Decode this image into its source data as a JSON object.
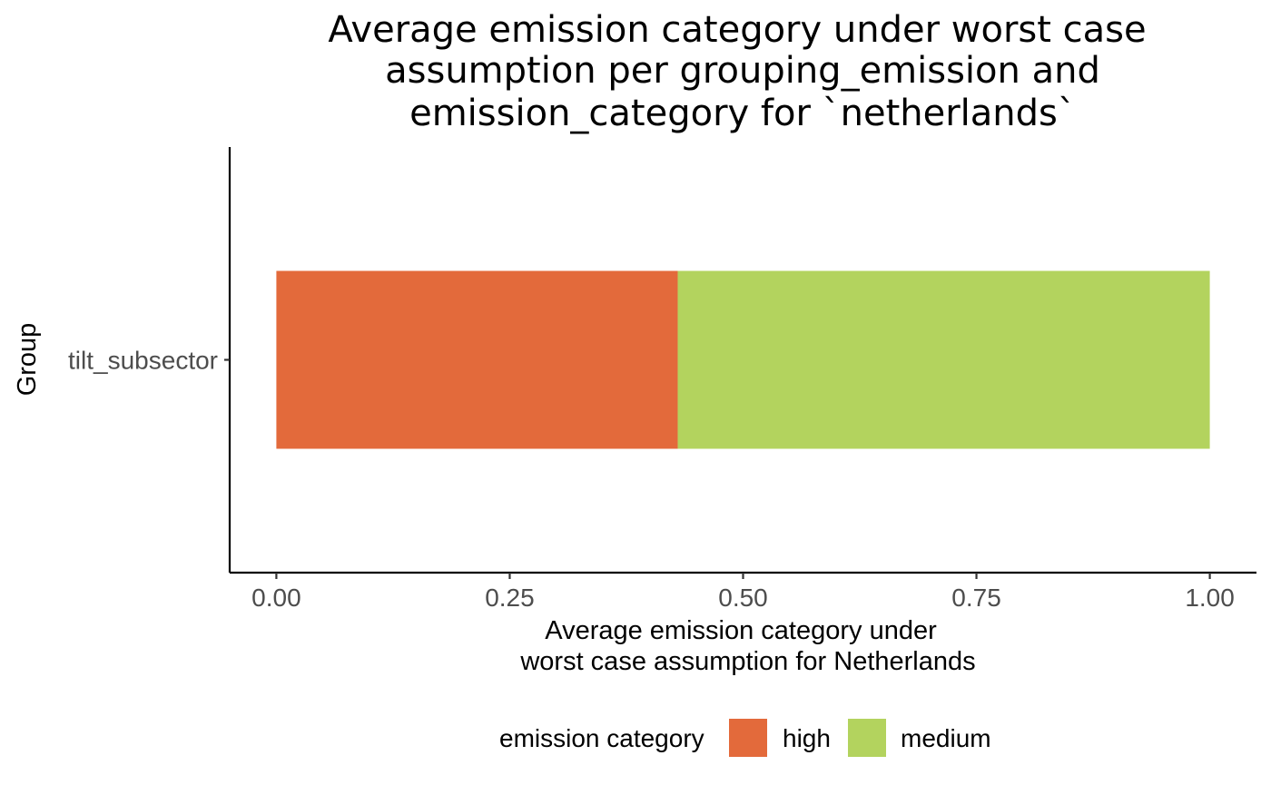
{
  "chart_data": {
    "type": "bar",
    "orientation": "horizontal",
    "stacked": true,
    "title": [
      "Average emission category under worst case",
      "assumption per grouping_emission and",
      "emission_category for `netherlands`"
    ],
    "xlabel": [
      "Average emission category under",
      "worst case assumption for Netherlands"
    ],
    "ylabel": "Group",
    "categories": [
      "tilt_subsector"
    ],
    "series": [
      {
        "name": "high",
        "color": "#e36a3b",
        "values": [
          0.43
        ]
      },
      {
        "name": "medium",
        "color": "#b3d35e",
        "values": [
          0.57
        ]
      }
    ],
    "xlim": [
      -0.05,
      1.05
    ],
    "xticks": [
      {
        "value": 0,
        "label": "0.00"
      },
      {
        "value": 0.25,
        "label": "0.25"
      },
      {
        "value": 0.5,
        "label": "0.50"
      },
      {
        "value": 0.75,
        "label": "0.75"
      },
      {
        "value": 1,
        "label": "1.00"
      }
    ],
    "grid": false,
    "legend": {
      "title": "emission category",
      "position": "bottom"
    }
  }
}
